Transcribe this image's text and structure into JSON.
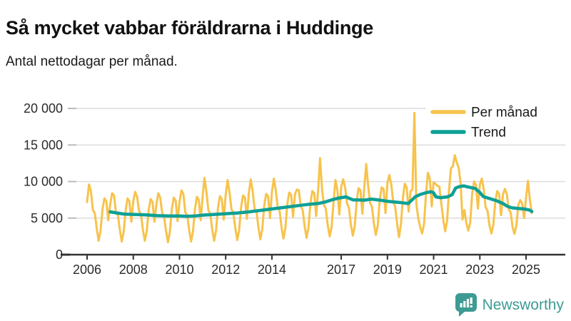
{
  "header": {
    "title": "Så mycket vabbar föräldrarna i Huddinge",
    "subtitle": "Antal nettodagar per månad."
  },
  "footer": {
    "brand": "Newsworthy",
    "brand_color": "#3D9B93"
  },
  "colors": {
    "per_month": "#F7C34C",
    "trend": "#0EA096",
    "grid": "#DCDCDC",
    "axis": "#333333",
    "text": "#2B2B2B",
    "background": "#FFFFFF"
  },
  "chart_data": {
    "type": "line",
    "title": "Så mycket vabbar föräldrarna i Huddinge",
    "subtitle": "Antal nettodagar per månad.",
    "xlabel": "",
    "ylabel": "",
    "xlim": [
      2005.7,
      2025.7
    ],
    "ylim": [
      0,
      20000
    ],
    "grid": "horizontal",
    "legend_position": "top-right",
    "x_tick_labels": [
      2006,
      2008,
      2010,
      2012,
      2014,
      2017,
      2019,
      2021,
      2023,
      2025
    ],
    "y_ticks": [
      0,
      5000,
      10000,
      15000,
      20000
    ],
    "y_tick_labels": [
      "0",
      "5 000",
      "10 000",
      "15 000",
      "20 000"
    ],
    "legend": [
      {
        "label": "Per månad",
        "color": "#F7C34C"
      },
      {
        "label": "Trend",
        "color": "#0EA096"
      }
    ],
    "series": [
      {
        "name": "Per månad",
        "freq": "monthly",
        "start_year": 2006,
        "start_month": 1,
        "values": [
          7200,
          9600,
          8700,
          6100,
          5700,
          3600,
          1900,
          3300,
          6200,
          7700,
          7300,
          4700,
          6900,
          8400,
          8100,
          5800,
          5400,
          3400,
          1800,
          3100,
          6000,
          7700,
          7300,
          4500,
          7300,
          8600,
          7900,
          6000,
          5500,
          3400,
          1900,
          3200,
          6100,
          7600,
          7200,
          4500,
          6900,
          8400,
          7800,
          5700,
          5200,
          3300,
          1700,
          3100,
          6200,
          7800,
          7400,
          4600,
          7200,
          8800,
          8300,
          5800,
          5400,
          3400,
          1800,
          3200,
          6200,
          7900,
          7500,
          4700,
          8000,
          10500,
          8600,
          6100,
          5600,
          3500,
          1900,
          3300,
          6400,
          8000,
          7600,
          4800,
          8200,
          10200,
          8500,
          6200,
          5700,
          3600,
          2000,
          3400,
          6500,
          8100,
          7800,
          4900,
          8400,
          10300,
          8700,
          6300,
          5900,
          3700,
          2100,
          3500,
          6700,
          8300,
          8000,
          5000,
          8600,
          10400,
          8800,
          6500,
          6000,
          3800,
          2200,
          3600,
          6900,
          8500,
          8200,
          5200,
          8300,
          8900,
          8800,
          6600,
          6100,
          3900,
          2300,
          3700,
          7000,
          8700,
          8400,
          5300,
          8800,
          13200,
          9100,
          6800,
          6300,
          4000,
          2500,
          3800,
          7200,
          10200,
          8800,
          5500,
          9300,
          10300,
          9250,
          7000,
          6400,
          4100,
          2600,
          3900,
          7300,
          9100,
          8800,
          5600,
          9200,
          12400,
          9400,
          7100,
          6500,
          4200,
          2700,
          4000,
          7500,
          9200,
          9000,
          5700,
          9800,
          10900,
          9600,
          7200,
          6600,
          4300,
          2400,
          4100,
          7700,
          9700,
          9200,
          5900,
          8700,
          8900,
          19400,
          7000,
          5000,
          3800,
          2900,
          4200,
          8200,
          11200,
          10400,
          6600,
          9900,
          9700,
          9400,
          9300,
          7000,
          4800,
          3200,
          4600,
          8800,
          11800,
          12100,
          13600,
          12600,
          11900,
          9800,
          4800,
          6100,
          4300,
          3300,
          4400,
          8300,
          10000,
          9500,
          6300,
          9600,
          10400,
          9000,
          6500,
          6000,
          4000,
          2900,
          4100,
          7200,
          8700,
          8300,
          5400,
          8250,
          9000,
          8300,
          6200,
          5800,
          3800,
          2850,
          4000,
          6800,
          7450,
          7000,
          5000,
          7800,
          10100,
          7500,
          5700
        ]
      },
      {
        "name": "Trend",
        "freq": "points",
        "points": [
          [
            2007.0,
            5850
          ],
          [
            2007.3,
            5700
          ],
          [
            2007.6,
            5550
          ],
          [
            2008.0,
            5500
          ],
          [
            2008.5,
            5450
          ],
          [
            2009.0,
            5350
          ],
          [
            2009.5,
            5300
          ],
          [
            2010.0,
            5300
          ],
          [
            2010.3,
            5250
          ],
          [
            2010.7,
            5300
          ],
          [
            2011.0,
            5400
          ],
          [
            2011.5,
            5500
          ],
          [
            2012.0,
            5600
          ],
          [
            2012.5,
            5700
          ],
          [
            2013.0,
            5850
          ],
          [
            2013.5,
            6050
          ],
          [
            2014.0,
            6250
          ],
          [
            2014.5,
            6450
          ],
          [
            2015.0,
            6650
          ],
          [
            2015.5,
            6850
          ],
          [
            2016.0,
            7000
          ],
          [
            2016.3,
            7200
          ],
          [
            2016.6,
            7500
          ],
          [
            2016.9,
            7750
          ],
          [
            2017.0,
            7800
          ],
          [
            2017.2,
            7900
          ],
          [
            2017.5,
            7500
          ],
          [
            2018.0,
            7450
          ],
          [
            2018.3,
            7600
          ],
          [
            2018.7,
            7450
          ],
          [
            2019.0,
            7300
          ],
          [
            2019.5,
            7150
          ],
          [
            2019.9,
            7000
          ],
          [
            2020.2,
            7900
          ],
          [
            2020.4,
            8200
          ],
          [
            2020.7,
            8500
          ],
          [
            2020.9,
            8600
          ],
          [
            2021.0,
            8450
          ],
          [
            2021.1,
            7900
          ],
          [
            2021.3,
            7800
          ],
          [
            2021.6,
            7900
          ],
          [
            2021.8,
            8200
          ],
          [
            2021.95,
            9100
          ],
          [
            2022.1,
            9300
          ],
          [
            2022.3,
            9400
          ],
          [
            2022.5,
            9250
          ],
          [
            2022.8,
            9050
          ],
          [
            2023.0,
            8500
          ],
          [
            2023.15,
            7950
          ],
          [
            2023.4,
            7700
          ],
          [
            2023.7,
            7400
          ],
          [
            2024.0,
            7000
          ],
          [
            2024.2,
            6600
          ],
          [
            2024.4,
            6400
          ],
          [
            2024.7,
            6300
          ],
          [
            2024.9,
            6250
          ],
          [
            2025.0,
            6200
          ],
          [
            2025.15,
            6100
          ],
          [
            2025.25,
            5900
          ]
        ]
      }
    ]
  }
}
